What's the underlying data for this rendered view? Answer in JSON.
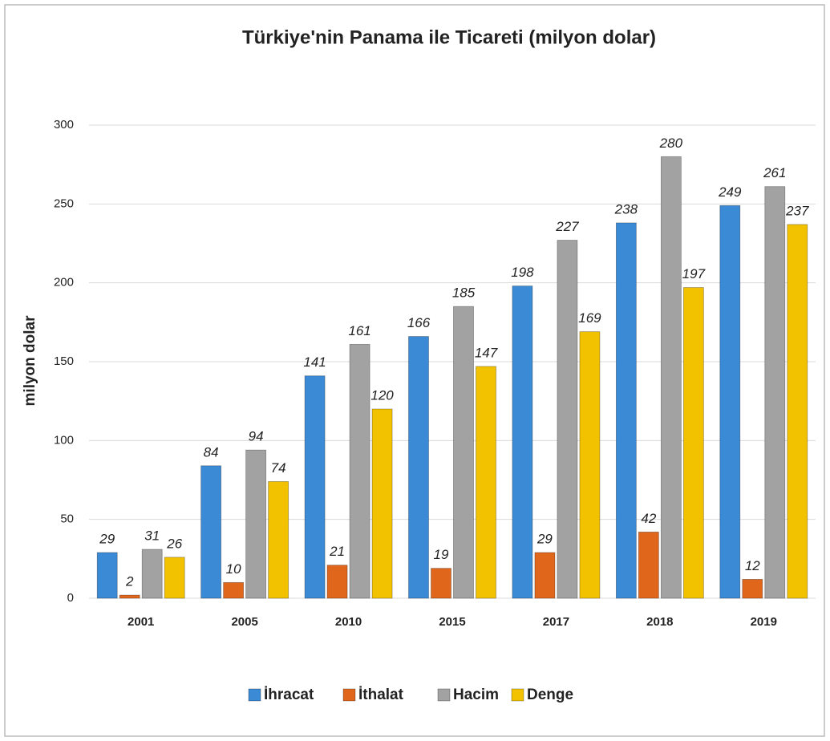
{
  "chart_data": {
    "type": "bar",
    "title": "Türkiye'nin Panama ile Ticareti (milyon dolar)",
    "y_label": "milyon dolar",
    "categories": [
      "2001",
      "2005",
      "2010",
      "2015",
      "2017",
      "2018",
      "2019"
    ],
    "series": [
      {
        "name": "İhracat",
        "color": "#3b8ad6",
        "values": [
          29,
          84,
          141,
          166,
          198,
          238,
          249
        ]
      },
      {
        "name": "İthalat",
        "color": "#e0661c",
        "values": [
          2,
          10,
          21,
          19,
          29,
          42,
          12
        ]
      },
      {
        "name": "Hacim",
        "color": "#a2a2a2",
        "values": [
          31,
          94,
          161,
          185,
          227,
          280,
          261
        ]
      },
      {
        "name": "Denge",
        "color": "#f2c200",
        "values": [
          26,
          74,
          120,
          147,
          169,
          197,
          237
        ]
      }
    ],
    "ylim": [
      0,
      300
    ],
    "yticks": [
      0,
      50,
      100,
      150,
      200,
      250,
      300
    ],
    "grid": true,
    "legend": "bottom"
  }
}
